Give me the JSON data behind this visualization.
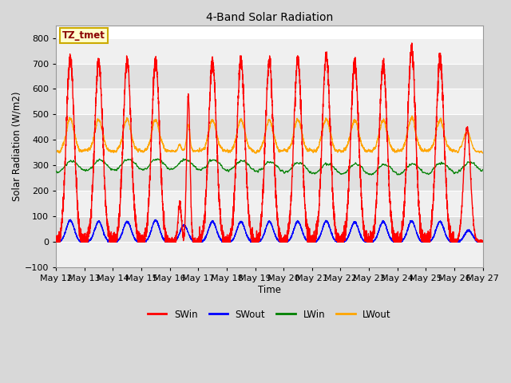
{
  "title": "4-Band Solar Radiation",
  "xlabel": "Time",
  "ylabel": "Solar Radiation (W/m2)",
  "ylim": [
    -100,
    850
  ],
  "fig_bg_color": "#d8d8d8",
  "plot_bg_color": "#ffffff",
  "legend_labels": [
    "SWin",
    "SWout",
    "LWin",
    "LWout"
  ],
  "legend_colors": [
    "red",
    "blue",
    "green",
    "orange"
  ],
  "annotation_text": "TZ_tmet",
  "annotation_bg": "#ffffcc",
  "annotation_border": "#ccaa00",
  "tick_labels": [
    "May 12",
    "May 13",
    "May 14",
    "May 15",
    "May 16",
    "May 17",
    "May 18",
    "May 19",
    "May 20",
    "May 21",
    "May 22",
    "May 23",
    "May 24",
    "May 25",
    "May 26",
    "May 27"
  ],
  "n_days": 15,
  "pts_per_day": 288,
  "SWin_peaks": [
    720,
    710,
    710,
    710,
    575,
    710,
    710,
    710,
    715,
    735,
    705,
    700,
    760,
    720,
    450
  ],
  "SWout_peaks": [
    85,
    80,
    80,
    85,
    65,
    80,
    80,
    80,
    80,
    82,
    78,
    80,
    82,
    80,
    45
  ],
  "LWin_base": 295,
  "LWin_amp": 55,
  "LWout_night": 355,
  "LWout_day_boost": 130,
  "grid_color": "#cccccc",
  "band_colors": [
    "#f0f0f0",
    "#e0e0e0"
  ]
}
